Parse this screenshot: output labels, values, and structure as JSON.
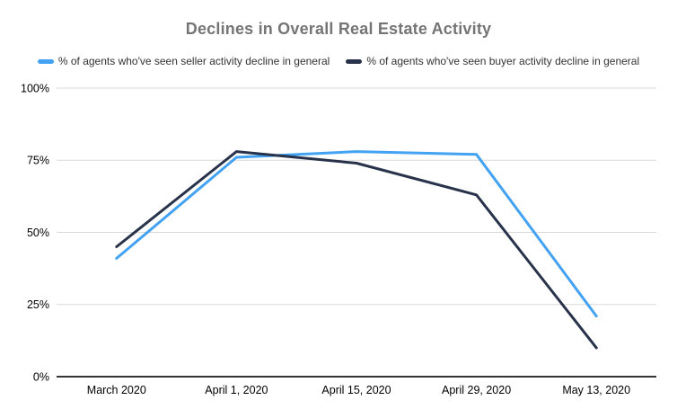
{
  "chart_data": {
    "type": "line",
    "title": "Declines in Overall Real Estate Activity",
    "categories": [
      "March 2020",
      "April 1, 2020",
      "April 15, 2020",
      "April 29, 2020",
      "May 13, 2020"
    ],
    "series": [
      {
        "name": "% of agents who've seen seller activity decline in general",
        "color": "#43A2F2",
        "values": [
          41,
          76,
          78,
          77,
          21
        ]
      },
      {
        "name": "% of agents who've seen buyer activity decline in general",
        "color": "#28334B",
        "values": [
          45,
          78,
          74,
          63,
          10
        ]
      }
    ],
    "xlabel": "",
    "ylabel": "",
    "ylim": [
      0,
      100
    ],
    "yticks": [
      0,
      25,
      50,
      75,
      100
    ],
    "ytick_labels": [
      "0%",
      "25%",
      "50%",
      "75%",
      "100%"
    ],
    "grid": true,
    "legend_position": "top",
    "point_markers": false
  },
  "colors": {
    "background": "#FFFFFF",
    "title_text": "#757575",
    "legend_text": "#333333",
    "tick_text": "#000000",
    "grid": "#D9D9D9",
    "axis": "#333333"
  }
}
